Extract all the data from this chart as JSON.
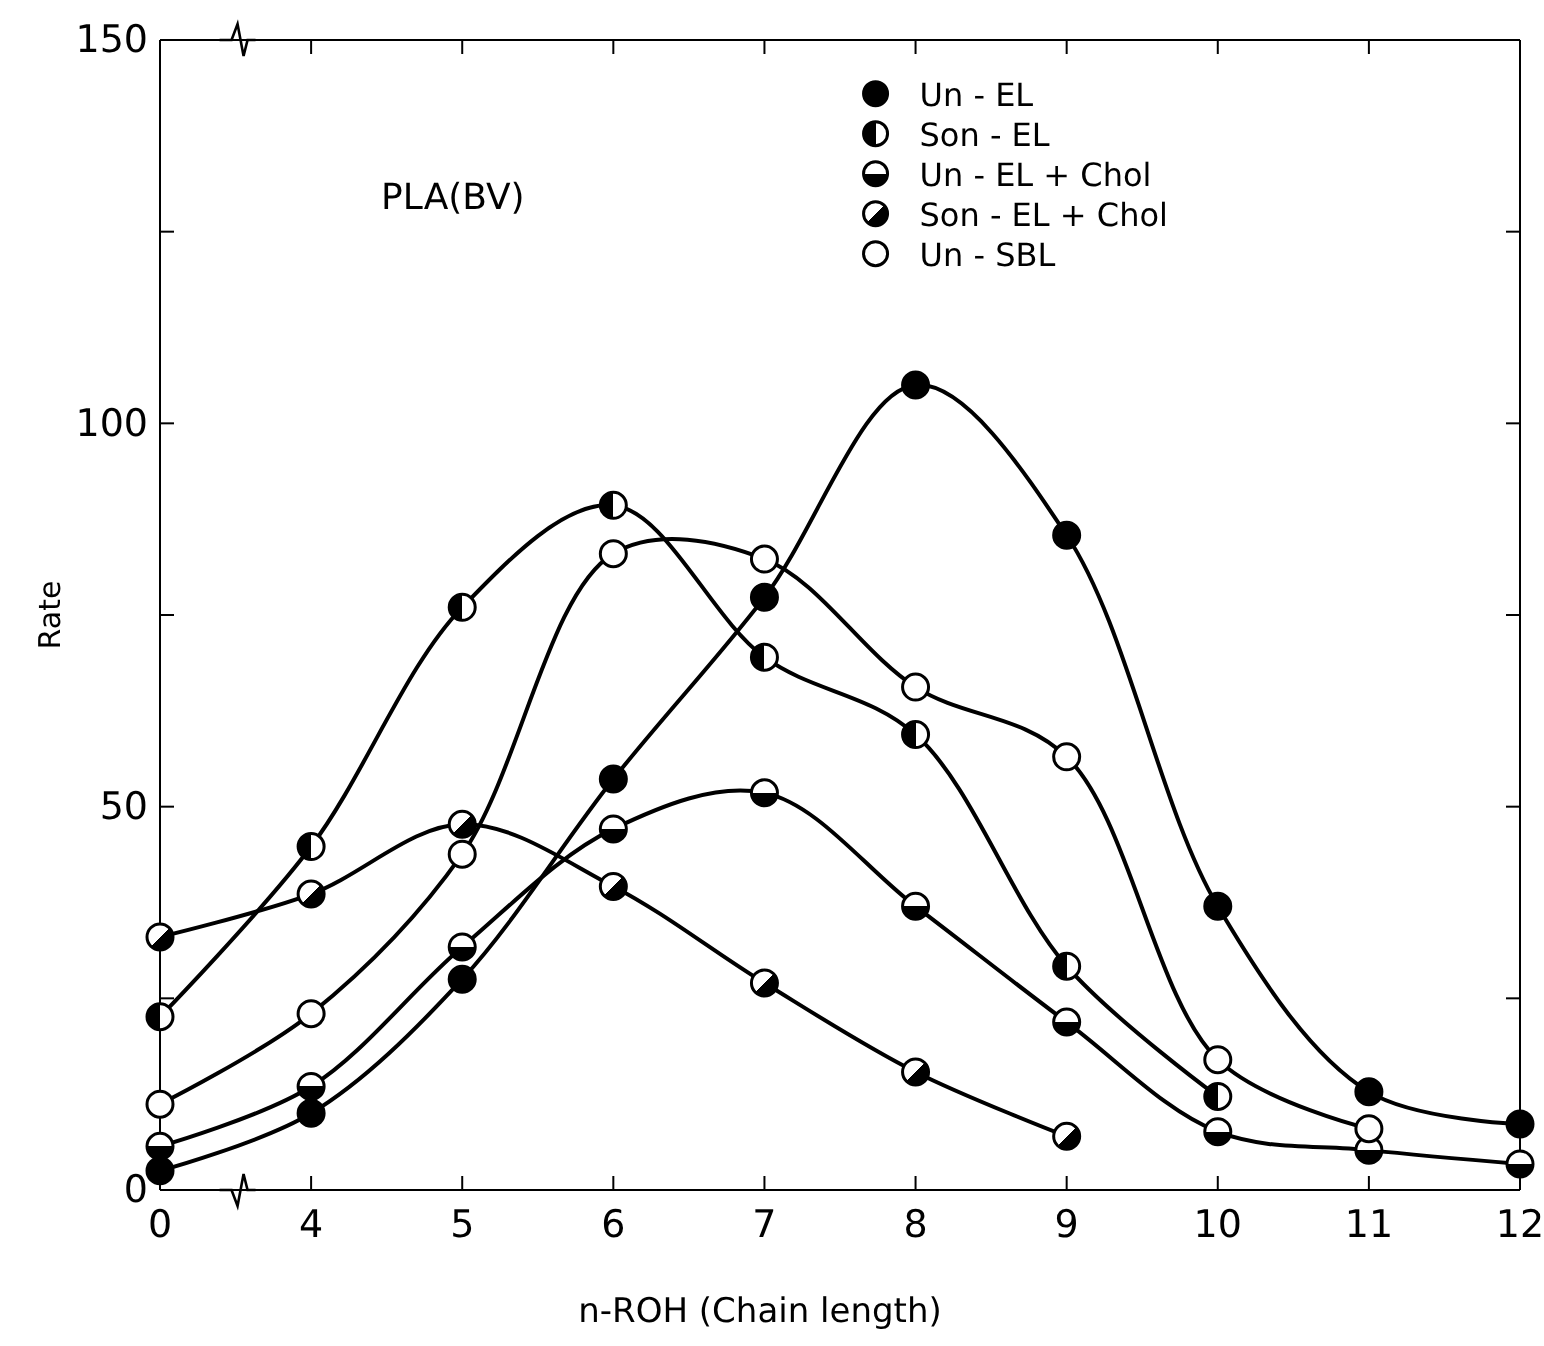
{
  "chart_data": {
    "type": "line",
    "title": "PLA(BV)",
    "xlabel": "n-ROH  (Chain length)",
    "ylabel": "Rate",
    "categories": [
      "0",
      "4",
      "5",
      "6",
      "7",
      "8",
      "9",
      "10",
      "11",
      "12"
    ],
    "ylim": [
      0,
      150
    ],
    "yticks": [
      0,
      {
        "value": 25,
        "label": null
      },
      50,
      {
        "value": 75,
        "label": null
      },
      100,
      {
        "value": 125,
        "label": null
      },
      150
    ],
    "marker": "circle",
    "line_style": "solid",
    "grid": false,
    "legend": "top right",
    "series": [
      {
        "name": "Un - EL",
        "color": "#000000",
        "values": [
          2.5,
          10,
          27.5,
          53.6,
          77.3,
          105,
          85.4,
          37,
          12.8,
          8.6
        ]
      },
      {
        "name": "Son - EL",
        "color": "#000000",
        "values": [
          22.6,
          44.8,
          76,
          89.3,
          69.5,
          59.4,
          29.2,
          12.2,
          null,
          null
        ]
      },
      {
        "name": "Un - EL + Chol",
        "color": "#000000",
        "values": [
          5.7,
          13.5,
          31.7,
          47.1,
          51.8,
          37,
          21.9,
          7.6,
          5.2,
          3.4
        ]
      },
      {
        "name": "Son - EL + Chol",
        "color": "#000000",
        "values": [
          33,
          38.6,
          47.7,
          39.6,
          27,
          15.4,
          7,
          null,
          null,
          null
        ]
      },
      {
        "name": "Un - SBL",
        "color": "#000000",
        "values": [
          11.2,
          23,
          43.8,
          83,
          82.3,
          65.6,
          56.5,
          17,
          8,
          null
        ]
      }
    ]
  }
}
